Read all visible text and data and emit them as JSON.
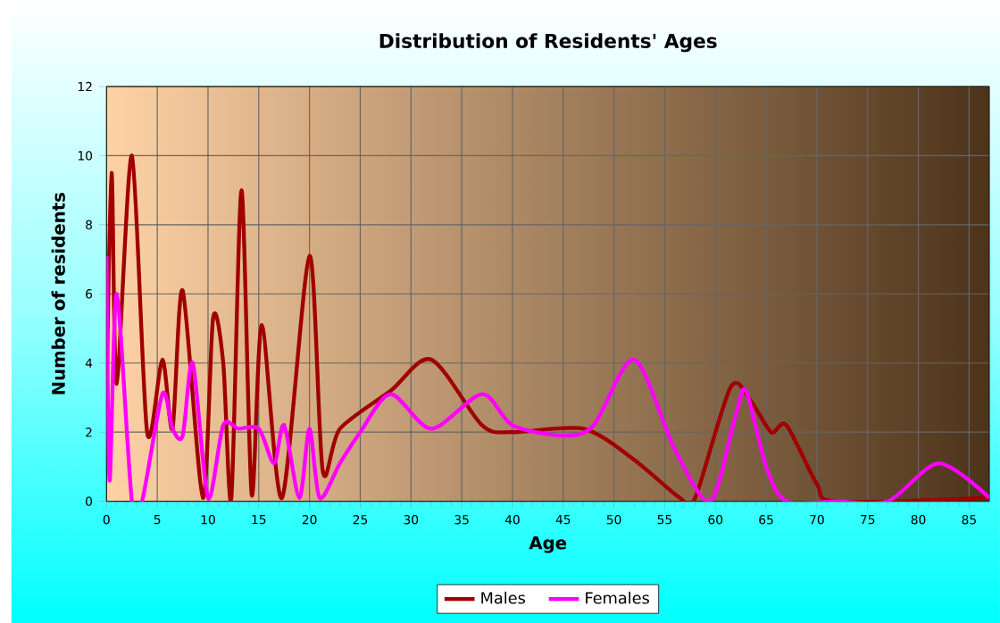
{
  "chart_data": {
    "type": "line",
    "title": "Distribution of Residents' Ages",
    "xlabel": "Age",
    "ylabel": "Number of residents",
    "xlim": [
      0,
      87
    ],
    "ylim": [
      0,
      12
    ],
    "xticks": [
      0,
      5,
      10,
      15,
      20,
      25,
      30,
      35,
      40,
      45,
      50,
      55,
      60,
      65,
      70,
      75,
      80,
      85
    ],
    "yticks": [
      0,
      2,
      4,
      6,
      8,
      10,
      12
    ],
    "grid": true,
    "legend": "bottom",
    "series": [
      {
        "name": "Males",
        "color": "#a00000",
        "x": [
          0,
          0.5,
          1,
          2.5,
          4,
          5.5,
          6.5,
          7.5,
          9.5,
          10.5,
          11.5,
          12.3,
          13.3,
          14.3,
          15.3,
          17.3,
          20,
          21.3,
          23,
          28,
          32,
          37,
          40,
          47,
          52,
          56.5,
          58,
          61.5,
          63.5,
          65.5,
          67,
          70,
          72,
          87
        ],
        "values": [
          3,
          9.5,
          3.4,
          10,
          2,
          4.1,
          2.1,
          6.1,
          0.1,
          5.3,
          4,
          0.1,
          9,
          0.2,
          5.1,
          0.1,
          7.1,
          0.9,
          2.1,
          3.2,
          4.1,
          2.2,
          2,
          2.1,
          1.2,
          0.1,
          0.1,
          3.3,
          2.9,
          2,
          2.2,
          0.5,
          0,
          0.1
        ]
      },
      {
        "name": "Females",
        "color": "#ff00ff",
        "x": [
          0,
          0.3,
          1,
          2.5,
          3.5,
          5.5,
          6.5,
          7.5,
          8.5,
          10,
          11.5,
          13,
          15,
          16.5,
          17.5,
          19,
          20,
          21,
          23,
          25,
          28,
          32,
          37,
          40,
          45,
          48,
          52,
          56,
          59.5,
          62,
          63,
          65,
          67,
          72,
          77,
          82,
          87
        ],
        "values": [
          7.1,
          0.6,
          6,
          0,
          0,
          3.1,
          2.1,
          1.9,
          4,
          0.1,
          2.2,
          2.1,
          2.1,
          1.1,
          2.2,
          0.1,
          2.1,
          0.1,
          1.1,
          2,
          3.1,
          2.1,
          3.1,
          2.2,
          1.9,
          2.2,
          4.1,
          1.5,
          0,
          2.5,
          3.2,
          1,
          0,
          0,
          0,
          1.1,
          0.1
        ]
      }
    ]
  }
}
